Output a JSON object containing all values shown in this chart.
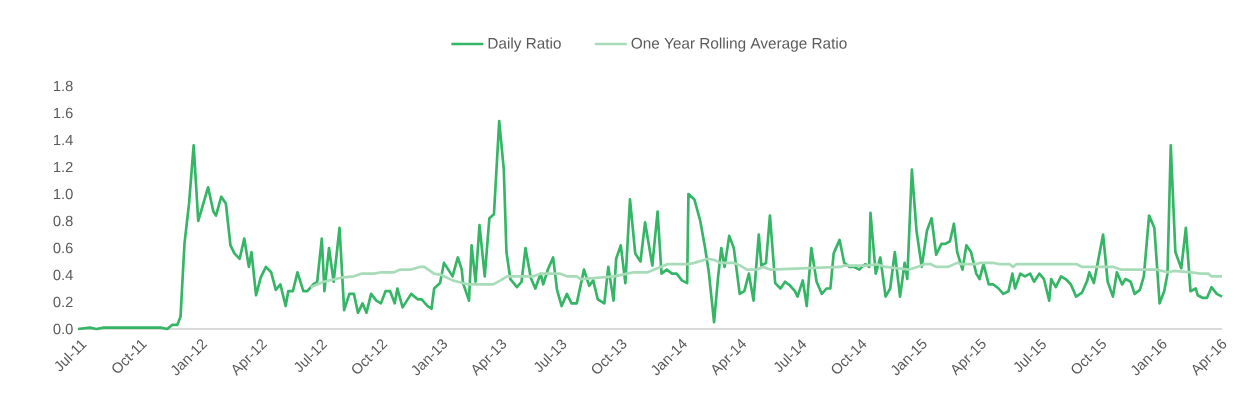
{
  "chart_data": {
    "type": "line",
    "legend": "top",
    "xlim": [
      "2011-07-01",
      "2016-04-06"
    ],
    "xticks": [
      {
        "value": "2011-07-01",
        "label": "Jul-11"
      },
      {
        "value": "2011-10-01",
        "label": "Oct-11"
      },
      {
        "value": "2012-01-01",
        "label": "Jan-12"
      },
      {
        "value": "2012-04-01",
        "label": "Apr-12"
      },
      {
        "value": "2012-07-01",
        "label": "Jul-12"
      },
      {
        "value": "2012-10-01",
        "label": "Oct-12"
      },
      {
        "value": "2013-01-01",
        "label": "Jan-13"
      },
      {
        "value": "2013-04-01",
        "label": "Apr-13"
      },
      {
        "value": "2013-07-01",
        "label": "Jul-13"
      },
      {
        "value": "2013-10-01",
        "label": "Oct-13"
      },
      {
        "value": "2014-01-01",
        "label": "Jan-14"
      },
      {
        "value": "2014-04-01",
        "label": "Apr-14"
      },
      {
        "value": "2014-07-01",
        "label": "Jul-14"
      },
      {
        "value": "2014-10-01",
        "label": "Oct-14"
      },
      {
        "value": "2015-01-01",
        "label": "Jan-15"
      },
      {
        "value": "2015-04-01",
        "label": "Apr-15"
      },
      {
        "value": "2015-07-01",
        "label": "Jul-15"
      },
      {
        "value": "2015-10-01",
        "label": "Oct-15"
      },
      {
        "value": "2016-01-01",
        "label": "Jan-16"
      },
      {
        "value": "2016-04-01",
        "label": "Apr-16"
      }
    ],
    "ylim": [
      0,
      1.8
    ],
    "yticks": [
      {
        "value": 0,
        "label": "0.0"
      },
      {
        "value": 0.2,
        "label": "0.2"
      },
      {
        "value": 0.4,
        "label": "0.4"
      },
      {
        "value": 0.6,
        "label": "0.6"
      },
      {
        "value": 0.8,
        "label": "0.8"
      },
      {
        "value": 1.0,
        "label": "1.0"
      },
      {
        "value": 1.2,
        "label": "1.2"
      },
      {
        "value": 1.4,
        "label": "1.4"
      },
      {
        "value": 1.6,
        "label": "1.6"
      },
      {
        "value": 1.8,
        "label": "1.8"
      }
    ],
    "series": [
      {
        "name": "Daily Ratio",
        "color": "#35b566",
        "x": [
          "2011-07-01",
          "2011-07-19",
          "2011-07-29",
          "2011-08-09",
          "2011-11-04",
          "2011-11-14",
          "2011-11-21",
          "2011-11-29",
          "2011-12-04",
          "2011-12-10",
          "2011-12-17",
          "2011-12-24",
          "2011-12-31",
          "2012-01-15",
          "2012-01-23",
          "2012-01-27",
          "2012-02-04",
          "2012-02-11",
          "2012-02-18",
          "2012-02-24",
          "2012-03-03",
          "2012-03-10",
          "2012-03-17",
          "2012-03-21",
          "2012-03-28",
          "2012-04-04",
          "2012-04-12",
          "2012-04-20",
          "2012-04-27",
          "2012-05-04",
          "2012-05-12",
          "2012-05-16",
          "2012-05-23",
          "2012-05-30",
          "2012-06-08",
          "2012-06-14",
          "2012-06-23",
          "2012-06-29",
          "2012-07-06",
          "2012-07-10",
          "2012-07-17",
          "2012-07-24",
          "2012-08-02",
          "2012-08-09",
          "2012-08-17",
          "2012-08-24",
          "2012-08-30",
          "2012-09-06",
          "2012-09-12",
          "2012-09-19",
          "2012-09-27",
          "2012-10-04",
          "2012-10-11",
          "2012-10-18",
          "2012-10-25",
          "2012-10-29",
          "2012-11-06",
          "2012-11-19",
          "2012-11-29",
          "2012-12-05",
          "2012-12-14",
          "2012-12-20",
          "2012-12-24",
          "2013-01-02",
          "2013-01-08",
          "2013-01-21",
          "2013-01-29",
          "2013-02-04",
          "2013-02-06",
          "2013-02-15",
          "2013-02-19",
          "2013-02-25",
          "2013-03-03",
          "2013-03-11",
          "2013-03-18",
          "2013-03-25",
          "2013-04-02",
          "2013-04-09",
          "2013-04-13",
          "2013-04-19",
          "2013-04-29",
          "2013-05-06",
          "2013-05-12",
          "2013-05-20",
          "2013-05-27",
          "2013-06-04",
          "2013-06-08",
          "2013-06-15",
          "2013-06-23",
          "2013-06-29",
          "2013-07-06",
          "2013-07-14",
          "2013-07-21",
          "2013-07-29",
          "2013-08-09",
          "2013-08-17",
          "2013-08-23",
          "2013-08-30",
          "2013-09-09",
          "2013-09-15",
          "2013-09-23",
          "2013-09-27",
          "2013-10-04",
          "2013-10-11",
          "2013-10-18",
          "2013-10-26",
          "2013-11-03",
          "2013-11-10",
          "2013-11-21",
          "2013-11-29",
          "2013-12-05",
          "2013-12-13",
          "2013-12-21",
          "2013-12-28",
          "2014-01-05",
          "2014-01-13",
          "2014-01-15",
          "2014-01-24",
          "2014-02-02",
          "2014-02-09",
          "2014-02-15",
          "2014-02-23",
          "2014-03-01",
          "2014-03-06",
          "2014-03-11",
          "2014-03-18",
          "2014-03-25",
          "2014-04-03",
          "2014-04-10",
          "2014-04-17",
          "2014-04-24",
          "2014-05-02",
          "2014-05-06",
          "2014-05-13",
          "2014-05-19",
          "2014-05-27",
          "2014-06-04",
          "2014-06-11",
          "2014-06-19",
          "2014-06-26",
          "2014-06-30",
          "2014-07-08",
          "2014-07-14",
          "2014-07-21",
          "2014-07-29",
          "2014-08-06",
          "2014-08-13",
          "2014-08-19",
          "2014-08-24",
          "2014-09-02",
          "2014-09-09",
          "2014-09-17",
          "2014-09-24",
          "2014-10-02",
          "2014-10-06",
          "2014-10-11",
          "2014-10-17",
          "2014-10-19",
          "2014-10-27",
          "2014-11-03",
          "2014-11-11",
          "2014-11-18",
          "2014-11-25",
          "2014-12-03",
          "2014-12-10",
          "2014-12-14",
          "2014-12-21",
          "2014-12-28",
          "2015-01-05",
          "2015-01-13",
          "2015-01-20",
          "2015-01-27",
          "2015-02-04",
          "2015-02-10",
          "2015-02-17",
          "2015-02-23",
          "2015-02-28",
          "2015-03-08",
          "2015-03-14",
          "2015-03-21",
          "2015-03-29",
          "2015-04-03",
          "2015-04-09",
          "2015-04-17",
          "2015-04-24",
          "2015-05-02",
          "2015-05-09",
          "2015-05-17",
          "2015-05-23",
          "2015-05-27",
          "2015-06-04",
          "2015-06-11",
          "2015-06-19",
          "2015-06-25",
          "2015-07-03",
          "2015-07-10",
          "2015-07-18",
          "2015-07-21",
          "2015-07-28",
          "2015-08-05",
          "2015-08-12",
          "2015-08-20",
          "2015-08-28",
          "2015-09-06",
          "2015-09-14",
          "2015-09-17",
          "2015-09-24",
          "2015-10-08",
          "2015-10-15",
          "2015-10-23",
          "2015-10-29",
          "2015-11-06",
          "2015-11-11",
          "2015-11-19",
          "2015-11-25",
          "2015-12-03",
          "2015-12-09",
          "2015-12-17",
          "2015-12-25",
          "2016-01-02",
          "2016-01-09",
          "2016-01-14",
          "2016-01-19",
          "2016-01-26",
          "2016-02-04",
          "2016-02-11",
          "2016-02-18",
          "2016-02-26",
          "2016-02-29",
          "2016-03-08",
          "2016-03-14",
          "2016-03-21",
          "2016-03-29",
          "2016-04-06"
        ],
        "values": [
          0,
          0.01,
          0,
          0.01,
          0.01,
          0,
          0.03,
          0.03,
          0.09,
          0.63,
          0.93,
          1.36,
          0.8,
          1.05,
          0.87,
          0.84,
          0.98,
          0.93,
          0.62,
          0.56,
          0.52,
          0.67,
          0.46,
          0.57,
          0.25,
          0.38,
          0.46,
          0.42,
          0.29,
          0.33,
          0.17,
          0.28,
          0.28,
          0.42,
          0.28,
          0.28,
          0.33,
          0.35,
          0.67,
          0.28,
          0.6,
          0.35,
          0.75,
          0.14,
          0.26,
          0.26,
          0.12,
          0.19,
          0.12,
          0.26,
          0.21,
          0.19,
          0.28,
          0.28,
          0.19,
          0.3,
          0.16,
          0.26,
          0.22,
          0.22,
          0.17,
          0.15,
          0.3,
          0.34,
          0.49,
          0.39,
          0.53,
          0.44,
          0.34,
          0.21,
          0.62,
          0.35,
          0.77,
          0.39,
          0.82,
          0.85,
          1.54,
          1.18,
          0.57,
          0.37,
          0.31,
          0.35,
          0.6,
          0.38,
          0.3,
          0.41,
          0.33,
          0.44,
          0.53,
          0.29,
          0.17,
          0.26,
          0.19,
          0.19,
          0.44,
          0.32,
          0.36,
          0.22,
          0.19,
          0.46,
          0.21,
          0.52,
          0.62,
          0.34,
          0.96,
          0.56,
          0.5,
          0.79,
          0.47,
          0.87,
          0.41,
          0.44,
          0.41,
          0.41,
          0.36,
          0.34,
          1.0,
          0.96,
          0.8,
          0.61,
          0.42,
          0.05,
          0.38,
          0.6,
          0.46,
          0.69,
          0.6,
          0.26,
          0.28,
          0.41,
          0.21,
          0.7,
          0.47,
          0.49,
          0.84,
          0.34,
          0.3,
          0.35,
          0.32,
          0.28,
          0.24,
          0.36,
          0.17,
          0.6,
          0.35,
          0.26,
          0.3,
          0.3,
          0.56,
          0.66,
          0.49,
          0.46,
          0.46,
          0.44,
          0.46,
          0.48,
          0.46,
          0.86,
          0.41,
          0.53,
          0.24,
          0.3,
          0.57,
          0.24,
          0.49,
          0.37,
          1.18,
          0.73,
          0.46,
          0.73,
          0.82,
          0.55,
          0.63,
          0.63,
          0.65,
          0.78,
          0.57,
          0.44,
          0.62,
          0.57,
          0.41,
          0.37,
          0.48,
          0.33,
          0.33,
          0.3,
          0.26,
          0.28,
          0.41,
          0.3,
          0.41,
          0.39,
          0.41,
          0.35,
          0.41,
          0.37,
          0.21,
          0.37,
          0.31,
          0.39,
          0.37,
          0.33,
          0.24,
          0.27,
          0.36,
          0.42,
          0.34,
          0.7,
          0.35,
          0.24,
          0.42,
          0.33,
          0.37,
          0.35,
          0.26,
          0.29,
          0.39,
          0.84,
          0.75,
          0.19,
          0.28,
          0.41,
          1.36,
          0.57,
          0.45,
          0.75,
          0.28,
          0.3,
          0.25,
          0.23,
          0.23,
          0.31,
          0.26,
          0.24
        ]
      },
      {
        "name": "One Year Rolling Average Ratio",
        "color": "#a8dcb8",
        "x": [
          "2012-06-19",
          "2012-07-09",
          "2012-08-04",
          "2012-08-24",
          "2012-09-04",
          "2012-09-24",
          "2012-10-04",
          "2012-10-24",
          "2012-11-02",
          "2012-11-19",
          "2012-12-02",
          "2012-12-09",
          "2012-12-24",
          "2013-01-04",
          "2013-01-21",
          "2013-01-29",
          "2013-02-14",
          "2013-03-24",
          "2013-04-04",
          "2013-04-14",
          "2013-05-24",
          "2013-06-04",
          "2013-07-04",
          "2013-07-14",
          "2013-07-29",
          "2013-08-04",
          "2013-09-24",
          "2013-10-14",
          "2013-10-24",
          "2013-11-14",
          "2013-11-24",
          "2013-12-14",
          "2014-01-14",
          "2014-01-24",
          "2014-02-14",
          "2014-02-24",
          "2014-03-04",
          "2014-03-24",
          "2014-04-04",
          "2014-04-14",
          "2014-04-29",
          "2014-05-09",
          "2014-05-19",
          "2014-09-04",
          "2014-09-09",
          "2014-10-14",
          "2014-10-29",
          "2014-11-11",
          "2014-11-29",
          "2014-12-17",
          "2014-12-29",
          "2015-01-09",
          "2015-01-19",
          "2015-01-27",
          "2015-02-14",
          "2015-02-28",
          "2015-03-06",
          "2015-03-29",
          "2015-04-04",
          "2015-04-24",
          "2015-05-04",
          "2015-05-19",
          "2015-05-24",
          "2015-05-29",
          "2015-08-29",
          "2015-09-06",
          "2015-10-24",
          "2015-11-04",
          "2015-12-29",
          "2016-01-14",
          "2016-01-24",
          "2016-02-19",
          "2016-03-04",
          "2016-03-16",
          "2016-03-21",
          "2016-04-06"
        ],
        "values": [
          0.31,
          0.35,
          0.38,
          0.39,
          0.41,
          0.41,
          0.42,
          0.42,
          0.44,
          0.44,
          0.46,
          0.46,
          0.41,
          0.4,
          0.36,
          0.35,
          0.33,
          0.33,
          0.36,
          0.39,
          0.39,
          0.41,
          0.41,
          0.39,
          0.39,
          0.37,
          0.39,
          0.41,
          0.42,
          0.42,
          0.44,
          0.48,
          0.48,
          0.49,
          0.52,
          0.51,
          0.49,
          0.49,
          0.47,
          0.44,
          0.44,
          0.46,
          0.44,
          0.46,
          0.47,
          0.47,
          0.48,
          0.46,
          0.45,
          0.44,
          0.46,
          0.48,
          0.48,
          0.46,
          0.46,
          0.49,
          0.48,
          0.48,
          0.49,
          0.49,
          0.48,
          0.48,
          0.46,
          0.48,
          0.48,
          0.46,
          0.46,
          0.44,
          0.44,
          0.42,
          0.43,
          0.42,
          0.41,
          0.41,
          0.39,
          0.39
        ]
      }
    ]
  }
}
